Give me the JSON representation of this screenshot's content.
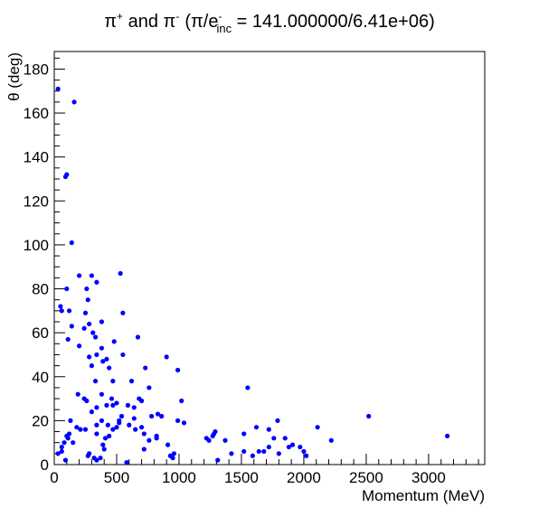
{
  "chart_data": {
    "type": "scatter",
    "title_parts": {
      "pi": "π",
      "plus": "+",
      "and": " and ",
      "minus": "-",
      "paren_open": "(π/e",
      "sup_minus": "-",
      "sub_inc": "inc",
      "rest": " = 141.000000/6.41e+06)"
    },
    "xlabel": "Momentum (MeV)",
    "ylabel": "θ (deg)",
    "xlim": [
      0,
      3450
    ],
    "ylim": [
      0,
      188
    ],
    "xticks": [
      0,
      500,
      1000,
      1500,
      2000,
      2500,
      3000
    ],
    "yticks": [
      0,
      20,
      40,
      60,
      80,
      100,
      120,
      140,
      160,
      180
    ],
    "marker_color": "#0000ff",
    "points": [
      [
        30,
        171
      ],
      [
        160,
        165
      ],
      [
        90,
        131
      ],
      [
        100,
        132
      ],
      [
        140,
        101
      ],
      [
        530,
        87
      ],
      [
        300,
        86
      ],
      [
        200,
        86
      ],
      [
        340,
        83
      ],
      [
        260,
        80
      ],
      [
        100,
        80
      ],
      [
        270,
        75
      ],
      [
        60,
        70
      ],
      [
        50,
        72
      ],
      [
        120,
        70
      ],
      [
        550,
        69
      ],
      [
        250,
        69
      ],
      [
        380,
        65
      ],
      [
        280,
        64
      ],
      [
        140,
        63
      ],
      [
        240,
        62
      ],
      [
        310,
        60
      ],
      [
        330,
        58
      ],
      [
        670,
        58
      ],
      [
        110,
        57
      ],
      [
        200,
        54
      ],
      [
        380,
        53
      ],
      [
        480,
        56
      ],
      [
        340,
        50
      ],
      [
        390,
        47
      ],
      [
        550,
        50
      ],
      [
        280,
        49
      ],
      [
        420,
        48
      ],
      [
        900,
        49
      ],
      [
        300,
        45
      ],
      [
        440,
        44
      ],
      [
        730,
        44
      ],
      [
        990,
        43
      ],
      [
        330,
        38
      ],
      [
        470,
        38
      ],
      [
        620,
        38
      ],
      [
        760,
        35
      ],
      [
        1550,
        35
      ],
      [
        190,
        32
      ],
      [
        380,
        32
      ],
      [
        460,
        30
      ],
      [
        240,
        30
      ],
      [
        680,
        30
      ],
      [
        700,
        29
      ],
      [
        260,
        29
      ],
      [
        500,
        28
      ],
      [
        1020,
        29
      ],
      [
        340,
        26
      ],
      [
        420,
        27
      ],
      [
        470,
        27
      ],
      [
        590,
        27
      ],
      [
        640,
        26
      ],
      [
        300,
        24
      ],
      [
        540,
        22
      ],
      [
        780,
        22
      ],
      [
        830,
        23
      ],
      [
        520,
        20
      ],
      [
        640,
        21
      ],
      [
        860,
        22
      ],
      [
        380,
        20
      ],
      [
        340,
        18
      ],
      [
        130,
        20
      ],
      [
        180,
        17
      ],
      [
        210,
        16
      ],
      [
        250,
        16
      ],
      [
        470,
        16
      ],
      [
        600,
        18
      ],
      [
        700,
        17
      ],
      [
        720,
        14
      ],
      [
        820,
        13
      ],
      [
        990,
        20
      ],
      [
        1040,
        19
      ],
      [
        1220,
        12
      ],
      [
        1240,
        11
      ],
      [
        1280,
        14
      ],
      [
        1370,
        11
      ],
      [
        1520,
        14
      ],
      [
        1620,
        17
      ],
      [
        1720,
        16
      ],
      [
        1790,
        20
      ],
      [
        1850,
        12
      ],
      [
        2110,
        17
      ],
      [
        2220,
        11
      ],
      [
        2520,
        22
      ],
      [
        3150,
        13
      ],
      [
        760,
        11
      ],
      [
        720,
        7
      ],
      [
        390,
        9
      ],
      [
        340,
        14
      ],
      [
        410,
        12
      ],
      [
        440,
        13
      ],
      [
        100,
        13
      ],
      [
        110,
        12
      ],
      [
        60,
        8
      ],
      [
        80,
        10
      ],
      [
        150,
        10
      ],
      [
        90,
        2
      ],
      [
        30,
        5
      ],
      [
        270,
        4
      ],
      [
        320,
        3
      ],
      [
        340,
        2
      ],
      [
        280,
        5
      ],
      [
        370,
        3
      ],
      [
        580,
        1
      ],
      [
        910,
        9
      ],
      [
        930,
        4
      ],
      [
        960,
        5
      ],
      [
        950,
        3
      ],
      [
        1310,
        2
      ],
      [
        1420,
        5
      ],
      [
        1520,
        6
      ],
      [
        1590,
        4
      ],
      [
        1640,
        6
      ],
      [
        1680,
        6
      ],
      [
        1720,
        8
      ],
      [
        1800,
        5
      ],
      [
        1880,
        8
      ],
      [
        1910,
        9
      ],
      [
        1970,
        8
      ],
      [
        2000,
        6
      ],
      [
        2020,
        4
      ],
      [
        1760,
        12
      ],
      [
        1290,
        15
      ],
      [
        1270,
        13
      ],
      [
        60,
        6
      ],
      [
        120,
        14
      ],
      [
        400,
        7
      ],
      [
        430,
        18
      ],
      [
        500,
        17
      ],
      [
        520,
        19
      ],
      [
        650,
        16
      ],
      [
        820,
        12
      ]
    ]
  }
}
